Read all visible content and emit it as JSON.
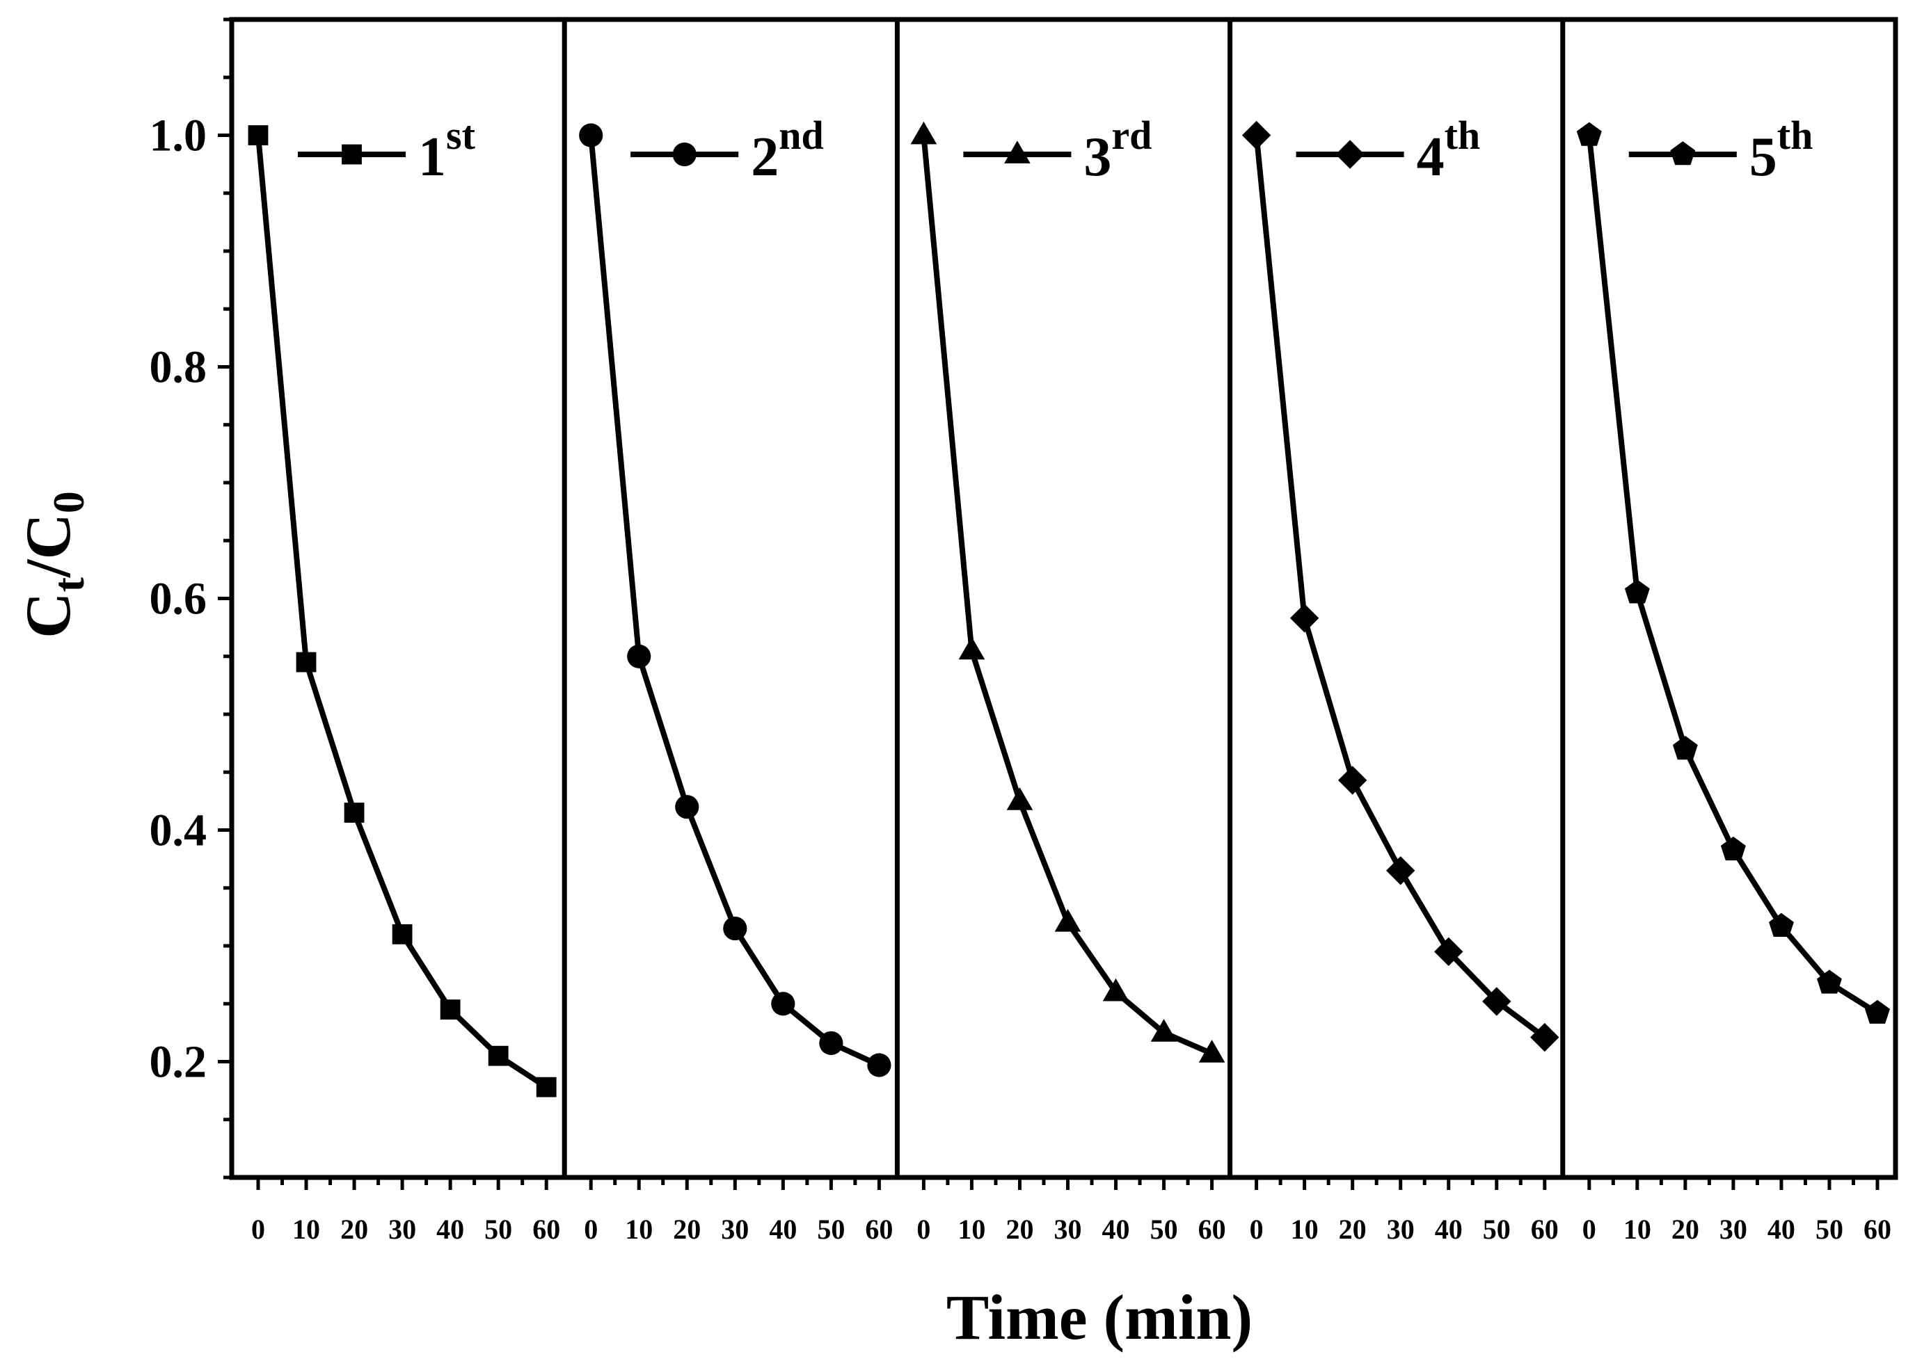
{
  "chart_data": {
    "type": "line",
    "xlabel": "Time (min)",
    "ylabel_main": "C",
    "ylabel_sub1": "t",
    "ylabel_mid": "/C",
    "ylabel_sub2": "0",
    "ylim": [
      0.1,
      1.1
    ],
    "yticks": [
      0.2,
      0.4,
      0.6,
      0.8,
      1.0
    ],
    "ytick_labels": [
      "0.2",
      "0.4",
      "0.6",
      "0.8",
      "1.0"
    ],
    "panels": [
      {
        "legend_num": "1",
        "legend_sup": "st",
        "marker": "square",
        "x": [
          0,
          10,
          20,
          30,
          40,
          50,
          60
        ],
        "xtick_labels": [
          "0",
          "10",
          "20",
          "30",
          "40",
          "50",
          "60"
        ],
        "y": [
          1.0,
          0.545,
          0.415,
          0.31,
          0.245,
          0.205,
          0.178
        ]
      },
      {
        "legend_num": "2",
        "legend_sup": "nd",
        "marker": "circle",
        "x": [
          0,
          10,
          20,
          30,
          40,
          50,
          60
        ],
        "xtick_labels": [
          "0",
          "10",
          "20",
          "30",
          "40",
          "50",
          "60"
        ],
        "y": [
          1.0,
          0.55,
          0.42,
          0.315,
          0.25,
          0.216,
          0.197
        ]
      },
      {
        "legend_num": "3",
        "legend_sup": "rd",
        "marker": "triangle",
        "x": [
          0,
          10,
          20,
          30,
          40,
          50,
          60
        ],
        "xtick_labels": [
          "0",
          "10",
          "20",
          "30",
          "40",
          "50",
          "60"
        ],
        "y": [
          1.0,
          0.555,
          0.425,
          0.32,
          0.26,
          0.225,
          0.207
        ]
      },
      {
        "legend_num": "4",
        "legend_sup": "th",
        "marker": "diamond",
        "x": [
          0,
          10,
          20,
          30,
          40,
          50,
          60
        ],
        "xtick_labels": [
          "0",
          "10",
          "20",
          "30",
          "40",
          "50",
          "60"
        ],
        "y": [
          1.0,
          0.583,
          0.443,
          0.365,
          0.295,
          0.252,
          0.221
        ]
      },
      {
        "legend_num": "5",
        "legend_sup": "th",
        "marker": "pentagon",
        "x": [
          0,
          10,
          20,
          30,
          40,
          50,
          60
        ],
        "xtick_labels": [
          "0",
          "10",
          "20",
          "30",
          "40",
          "50",
          "60"
        ],
        "y": [
          1.0,
          0.605,
          0.47,
          0.383,
          0.317,
          0.268,
          0.242
        ]
      }
    ],
    "line_color": "#000000",
    "marker_color": "#000000",
    "background_color": "#ffffff"
  }
}
